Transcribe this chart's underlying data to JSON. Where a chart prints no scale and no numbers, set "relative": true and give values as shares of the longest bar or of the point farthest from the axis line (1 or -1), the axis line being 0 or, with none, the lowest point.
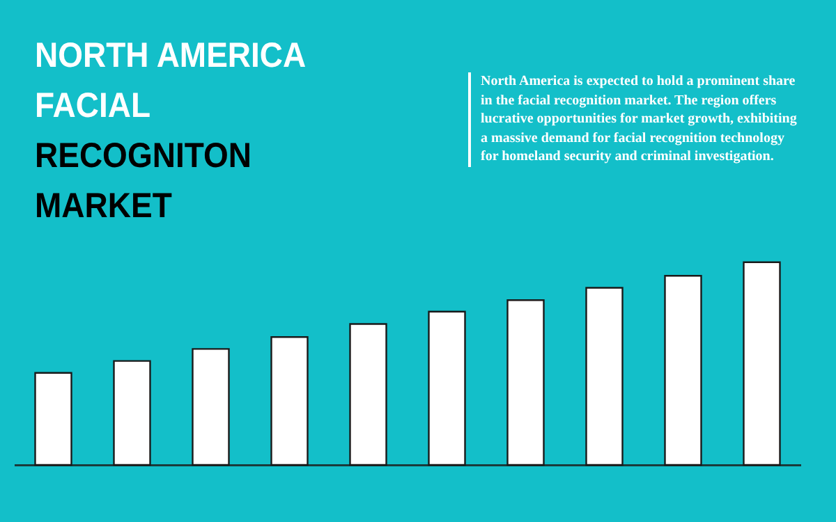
{
  "chart_data": {
    "type": "bar",
    "title": "NORTH AMERICA FACIAL RECOGNITON MARKET",
    "annotations": [
      "North America is expected to hold a prominent share in the facial recognition market. The region offers lucrative opportunities for market growth, exhibiting a massive demand for facial recognition technology for homeland security and criminal investigation."
    ],
    "categories": [
      null,
      null,
      null,
      null,
      null,
      null,
      null,
      null,
      null,
      null
    ],
    "values": [
      0.454,
      0.513,
      0.572,
      0.631,
      0.695,
      0.756,
      0.813,
      0.874,
      0.933,
      1
    ],
    "color": "#ffffff",
    "relative": true
  }
}
